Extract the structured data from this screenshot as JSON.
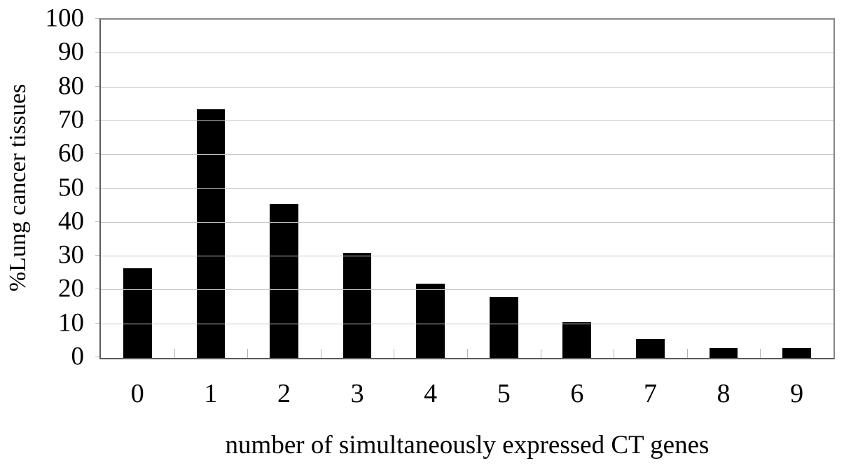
{
  "chart_data": {
    "type": "bar",
    "categories": [
      "0",
      "1",
      "2",
      "3",
      "4",
      "5",
      "6",
      "7",
      "8",
      "9"
    ],
    "values": [
      26.5,
      73.5,
      45.5,
      31,
      22,
      18,
      10.5,
      5.5,
      3,
      3
    ],
    "title": "",
    "xlabel": "number of simultaneously expressed CT genes",
    "ylabel": "%Lung cancer tissues",
    "ylim": [
      0,
      100
    ],
    "ytick_step": 10,
    "ytick_labels": [
      "0",
      "10",
      "20",
      "30",
      "40",
      "50",
      "60",
      "70",
      "80",
      "90",
      "100"
    ],
    "grid": true,
    "legend": "none",
    "colors": {
      "bar": "#000000",
      "gridline": "#c6c6c6",
      "plot_border": "#868686",
      "axis_line": "#5a5a5a",
      "background": "#ffffff",
      "text": "#000000"
    }
  }
}
